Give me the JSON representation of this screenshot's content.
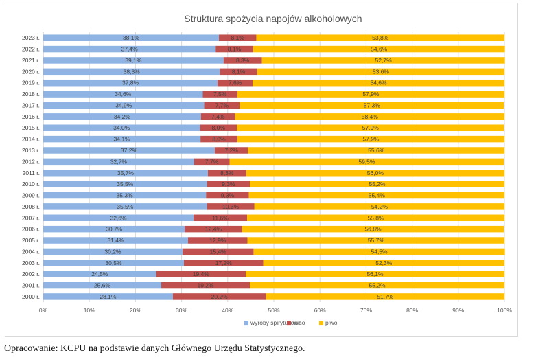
{
  "chart_data": {
    "type": "bar",
    "orientation": "horizontal",
    "stacked": true,
    "title": "Struktura spożycia napojów alkoholowych",
    "categories": [
      "2023 r.",
      "2022 r.",
      "2021 r.",
      "2020 r.",
      "2019 r.",
      "2018 r.",
      "2017 r.",
      "2016 r.",
      "2015 r.",
      "2014 r.",
      "2013 r.",
      "2012 r.",
      "2011 r.",
      "2010 r.",
      "2009 r.",
      "2008 r.",
      "2007 r.",
      "2006 r.",
      "2005 r.",
      "2004 r.",
      "2003 r.",
      "2002 r.",
      "2001 r.",
      "2000 r."
    ],
    "series": [
      {
        "name": "wyroby spirytusowe",
        "color": "#8fb4e3",
        "values": [
          38.1,
          37.4,
          39.1,
          38.3,
          37.8,
          34.6,
          34.9,
          34.2,
          34.0,
          34.1,
          37.2,
          32.7,
          35.7,
          35.5,
          35.3,
          35.5,
          32.6,
          30.7,
          31.4,
          30.2,
          30.5,
          24.5,
          25.6,
          28.1
        ],
        "labels": [
          "38,1%",
          "37,4%",
          "39,1%",
          "38,3%",
          "37,8%",
          "34,6%",
          "34,9%",
          "34,2%",
          "34,0%",
          "34,1%",
          "37,2%",
          "32,7%",
          "35,7%",
          "35,5%",
          "35,3%",
          "35,5%",
          "32,6%",
          "30,7%",
          "31,4%",
          "30,2%",
          "30,5%",
          "24,5%",
          "25,6%",
          "28,1%"
        ]
      },
      {
        "name": "wino",
        "color": "#c0504d",
        "values": [
          8.1,
          8.1,
          8.3,
          8.1,
          7.6,
          7.5,
          7.7,
          7.4,
          8.0,
          8.0,
          7.2,
          7.7,
          8.3,
          9.3,
          9.3,
          10.3,
          11.6,
          12.4,
          12.9,
          15.4,
          17.2,
          19.4,
          19.2,
          20.2
        ],
        "labels": [
          "8,1%",
          "8,1%",
          "8,3%",
          "8,1%",
          "7,6%",
          "7,5%",
          "7,7%",
          "7,4%",
          "8,0%",
          "8,0%",
          "7,2%",
          "7,7%",
          "8,3%",
          "9,3%",
          "9,3%",
          "10,3%",
          "11,6%",
          "12,4%",
          "12,9%",
          "15,4%",
          "17,2%",
          "19,4%",
          "19,2%",
          "20,2%"
        ]
      },
      {
        "name": "piwo",
        "color": "#ffc000",
        "values": [
          53.8,
          54.6,
          52.7,
          53.6,
          54.6,
          57.9,
          57.3,
          58.4,
          57.9,
          57.9,
          55.6,
          59.5,
          56.0,
          55.2,
          55.4,
          54.2,
          55.8,
          56.8,
          55.7,
          54.5,
          52.3,
          56.1,
          55.2,
          51.7
        ],
        "labels": [
          "53,8%",
          "54,6%",
          "52,7%",
          "53,6%",
          "54,6%",
          "57,9%",
          "57,3%",
          "58,4%",
          "57,9%",
          "57,9%",
          "55,6%",
          "59,5%",
          "56,0%",
          "55,2%",
          "55,4%",
          "54,2%",
          "55,8%",
          "56,8%",
          "55,7%",
          "54,5%",
          "52,3%",
          "56,1%",
          "55,2%",
          "51,7%"
        ]
      }
    ],
    "xlim": [
      0,
      100
    ],
    "xticks": [
      "0%",
      "10%",
      "20%",
      "30%",
      "40%",
      "50%",
      "60%",
      "70%",
      "80%",
      "90%",
      "100%"
    ],
    "grid": true,
    "legend_position": "bottom"
  },
  "source_note": "Opracowanie: KCPU na podstawie danych Głównego Urzędu Statystycznego."
}
